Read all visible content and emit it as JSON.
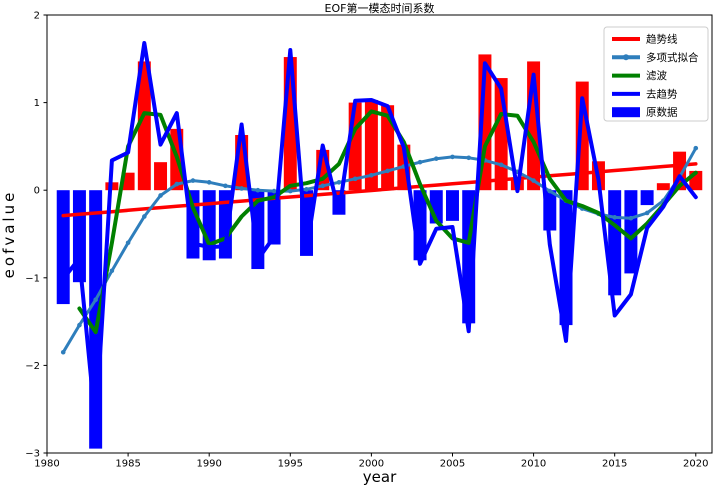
{
  "figure": {
    "background": "#ffffff"
  },
  "title": "EOF第一模态时间系数",
  "xlabel": "year",
  "ylabel": "eofvalue",
  "legend": {
    "position": "top-right",
    "border_color": "#cccccc",
    "entries": [
      {
        "label": "趋势线",
        "color": "#ff0000",
        "type": "line"
      },
      {
        "label": "多项式拟合",
        "color": "#2e7ebc",
        "type": "line-marker"
      },
      {
        "label": "滤波",
        "color": "#008000",
        "type": "line"
      },
      {
        "label": "去趋势",
        "color": "#0000ff",
        "type": "line"
      },
      {
        "label": "原数据",
        "color": "#0000ff",
        "type": "patch"
      }
    ]
  },
  "chart_data": {
    "type": "bar+line",
    "title": "EOF第一模态时间系数",
    "xlabel": "year",
    "ylabel": "eofvalue",
    "xlim": [
      1980,
      2021
    ],
    "ylim": [
      -3,
      2
    ],
    "grid": false,
    "x_tick_values": [
      1980,
      1985,
      1990,
      1995,
      2000,
      2005,
      2010,
      2015,
      2020
    ],
    "x_tick_labels": [
      "1980",
      "1985",
      "1990",
      "1995",
      "2000",
      "2005",
      "2010",
      "2015",
      "2020"
    ],
    "y_tick_values": [
      -3,
      -2,
      -1,
      0,
      1,
      2
    ],
    "y_tick_labels": [
      "−3",
      "−2",
      "−1",
      "0",
      "1",
      "2"
    ],
    "x": [
      1981,
      1982,
      1983,
      1984,
      1985,
      1986,
      1987,
      1988,
      1989,
      1990,
      1991,
      1992,
      1993,
      1994,
      1995,
      1996,
      1997,
      1998,
      1999,
      2000,
      2001,
      2002,
      2003,
      2004,
      2005,
      2006,
      2007,
      2008,
      2009,
      2010,
      2011,
      2012,
      2013,
      2014,
      2015,
      2016,
      2017,
      2018,
      2019,
      2020
    ],
    "series": [
      {
        "name": "原数据",
        "type": "bar",
        "bar_width_years": 0.8,
        "color_positive": "#ff0000",
        "color_negative": "#0000ff",
        "values": [
          -1.3,
          -1.05,
          -2.95,
          0.09,
          0.2,
          1.47,
          0.32,
          0.7,
          -0.78,
          -0.8,
          -0.78,
          0.63,
          -0.9,
          -0.62,
          1.52,
          -0.75,
          0.46,
          -0.28,
          1.0,
          1.03,
          0.97,
          0.52,
          -0.8,
          -0.38,
          -0.35,
          -1.52,
          1.55,
          1.28,
          0.12,
          1.47,
          -0.46,
          -1.54,
          1.24,
          0.33,
          -1.2,
          -0.95,
          -0.17,
          0.08,
          0.44,
          0.22
        ]
      },
      {
        "name": "趋势线",
        "type": "line",
        "color": "#ff0000",
        "width": 3.5,
        "values": [
          -0.29,
          -0.275,
          -0.26,
          -0.245,
          -0.229,
          -0.214,
          -0.199,
          -0.184,
          -0.169,
          -0.154,
          -0.139,
          -0.124,
          -0.108,
          -0.093,
          -0.078,
          -0.063,
          -0.048,
          -0.033,
          -0.018,
          -0.003,
          0.013,
          0.028,
          0.043,
          0.058,
          0.073,
          0.088,
          0.103,
          0.119,
          0.134,
          0.149,
          0.164,
          0.179,
          0.194,
          0.209,
          0.225,
          0.24,
          0.255,
          0.27,
          0.285,
          0.3
        ]
      },
      {
        "name": "多项式拟合",
        "type": "line",
        "color": "#2e7ebc",
        "width": 3,
        "marker": true,
        "values": [
          -1.85,
          -1.54,
          -1.25,
          -0.92,
          -0.6,
          -0.3,
          -0.06,
          0.07,
          0.11,
          0.09,
          0.05,
          0.02,
          0.0,
          -0.01,
          -0.01,
          0.01,
          0.05,
          0.09,
          0.13,
          0.17,
          0.22,
          0.27,
          0.32,
          0.36,
          0.38,
          0.37,
          0.34,
          0.29,
          0.21,
          0.11,
          -0.01,
          -0.12,
          -0.21,
          -0.27,
          -0.31,
          -0.32,
          -0.26,
          -0.12,
          0.15,
          0.48
        ]
      },
      {
        "name": "滤波",
        "type": "line",
        "color": "#008000",
        "width": 4,
        "values": [
          null,
          -1.35,
          -1.62,
          -0.6,
          0.5,
          0.88,
          0.86,
          0.38,
          -0.2,
          -0.62,
          -0.55,
          -0.3,
          -0.12,
          -0.08,
          0.05,
          0.08,
          0.13,
          0.3,
          0.7,
          0.9,
          0.85,
          0.55,
          0.07,
          -0.35,
          -0.55,
          -0.6,
          0.5,
          0.87,
          0.85,
          0.55,
          0.13,
          -0.12,
          -0.18,
          -0.26,
          -0.4,
          -0.55,
          -0.38,
          -0.17,
          0.05,
          0.2
        ]
      },
      {
        "name": "去趋势",
        "type": "line",
        "color": "#0000ff",
        "width": 4,
        "values": [
          -1.01,
          -0.78,
          -2.69,
          0.34,
          0.43,
          1.68,
          0.52,
          0.88,
          -0.61,
          -0.65,
          -0.64,
          0.75,
          -0.79,
          -0.53,
          1.6,
          -0.69,
          0.51,
          -0.25,
          1.02,
          1.03,
          0.96,
          0.49,
          -0.84,
          -0.44,
          -0.42,
          -1.61,
          1.45,
          1.16,
          -0.01,
          1.32,
          -0.62,
          -1.72,
          1.05,
          0.12,
          -1.43,
          -1.19,
          -0.43,
          -0.19,
          0.16,
          -0.08
        ]
      }
    ]
  }
}
